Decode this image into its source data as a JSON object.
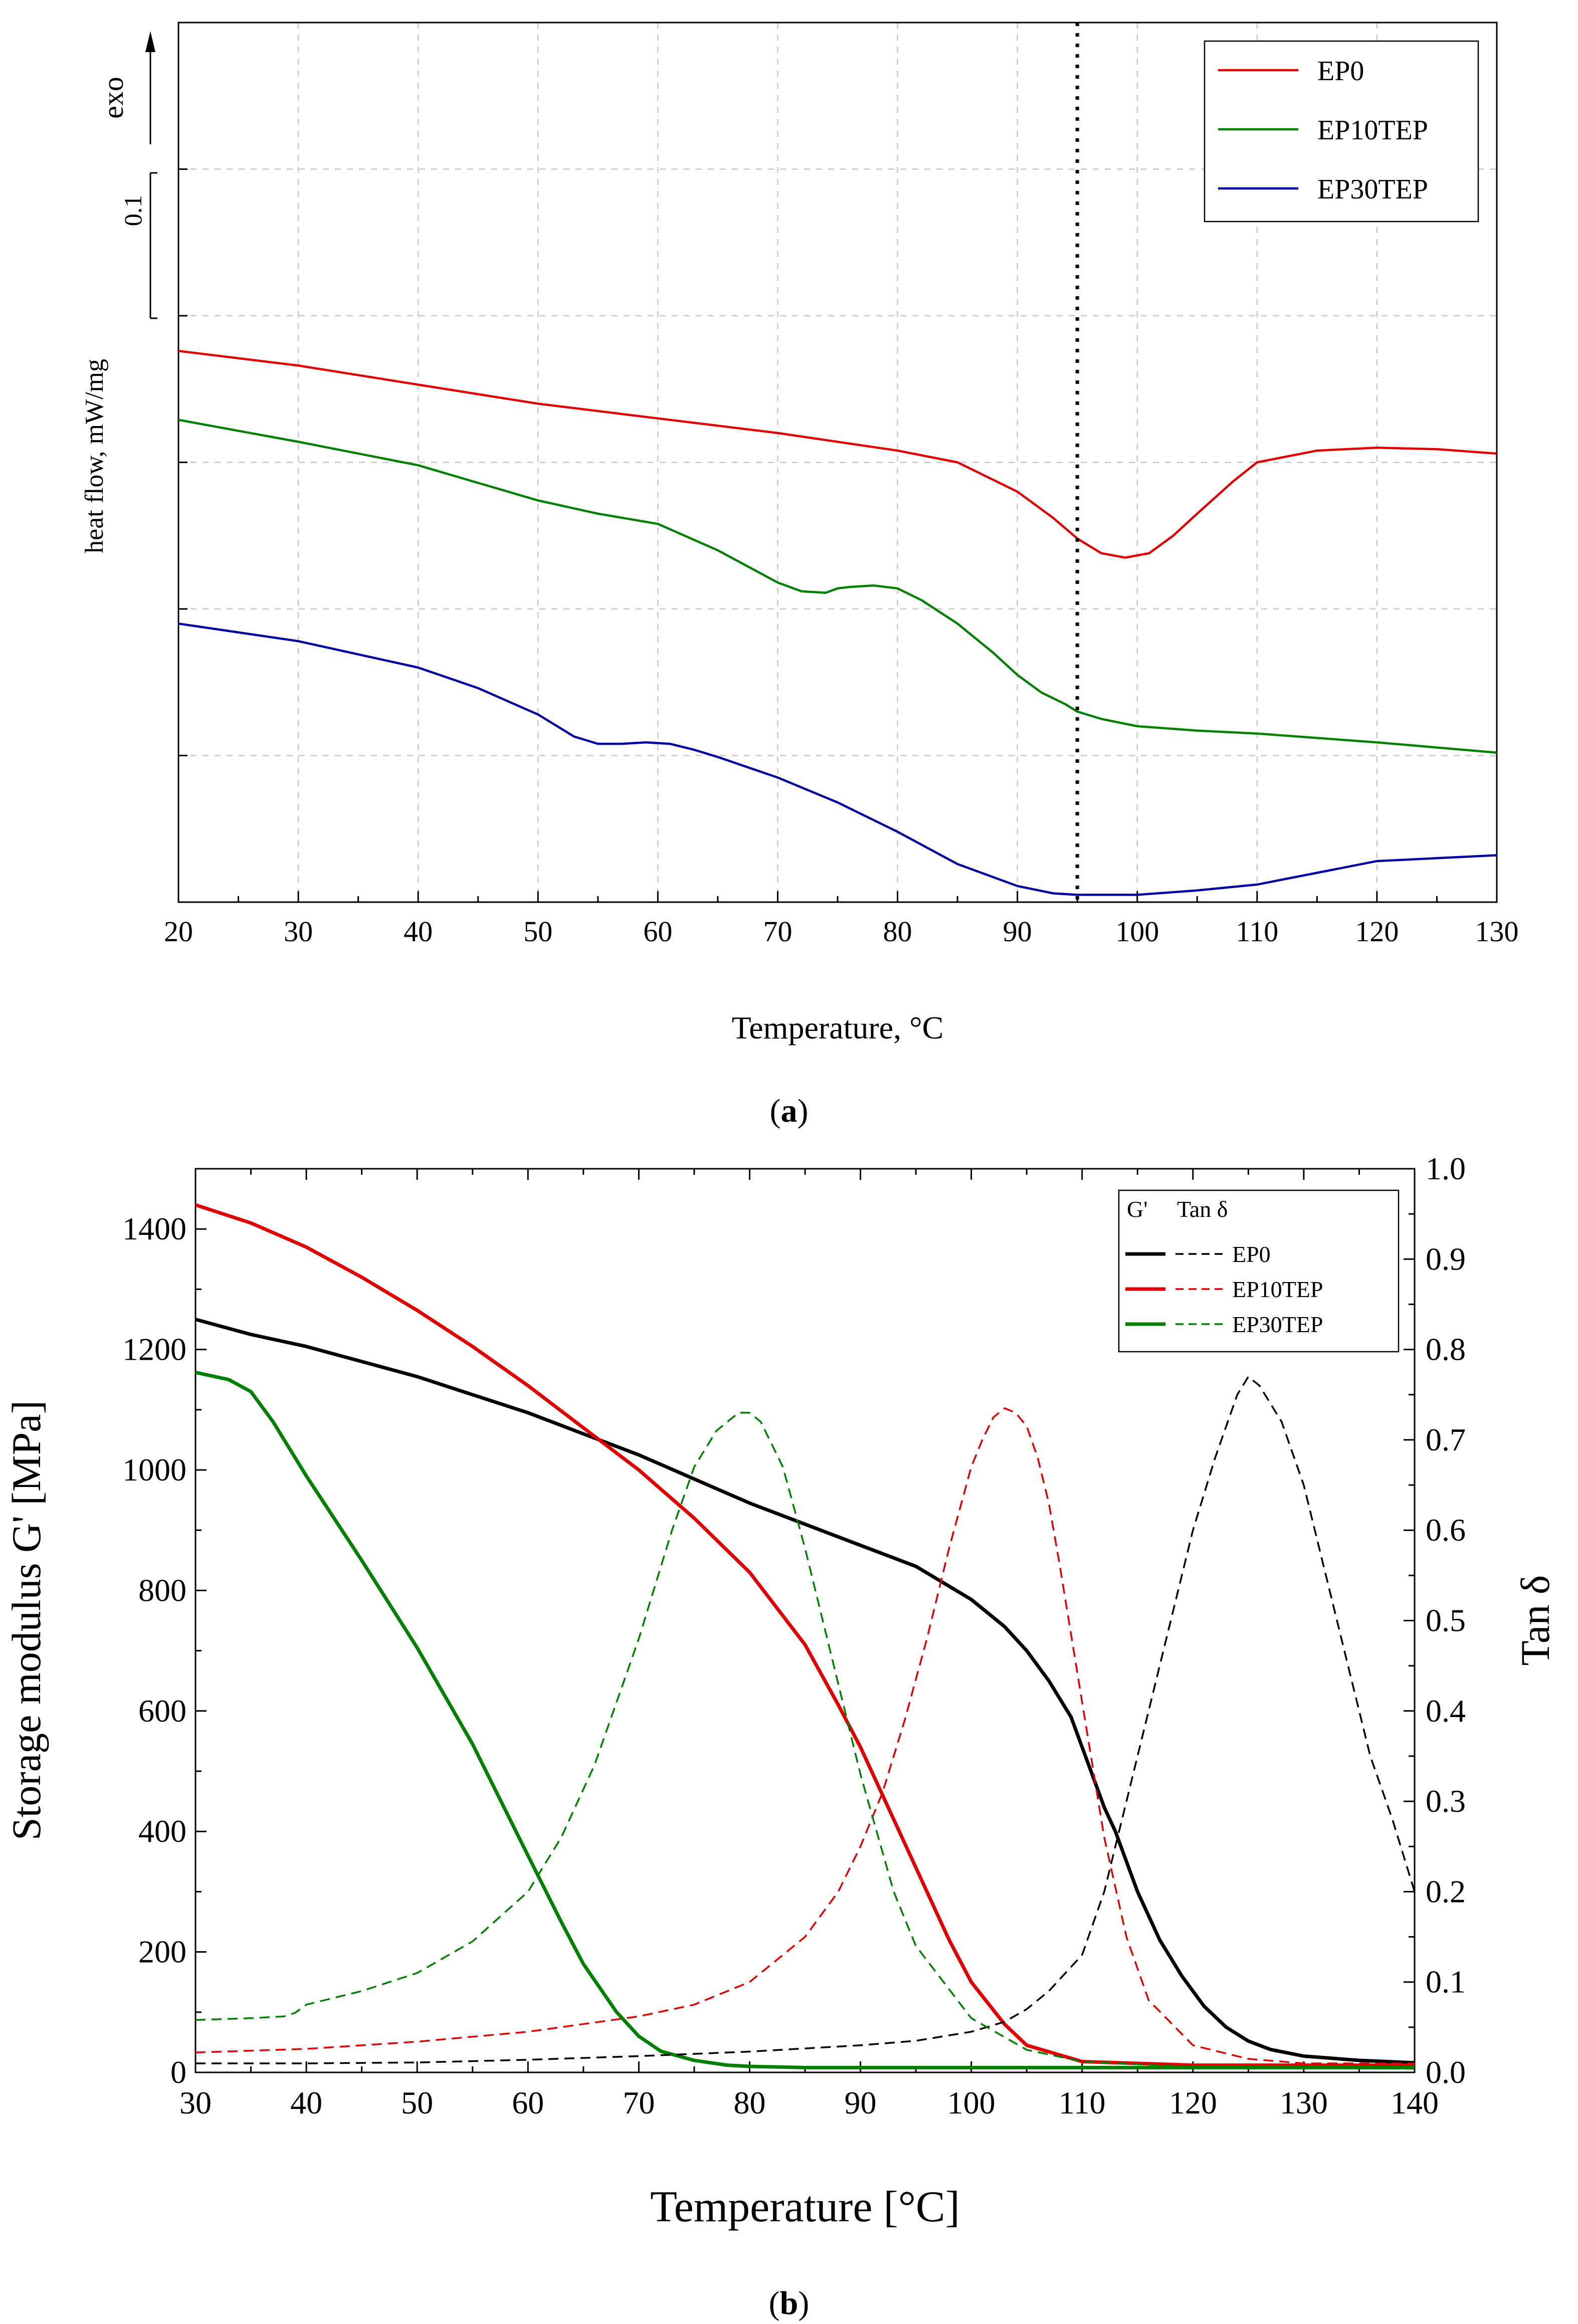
{
  "figure": {
    "panel_a_label": "a",
    "panel_b_label": "b"
  },
  "chart_data": [
    {
      "type": "line",
      "panel": "a",
      "title": "",
      "xlabel": "Temperature, °C",
      "ylabel": "heat flow, mW/mg",
      "xlim": [
        20,
        130
      ],
      "xticks": [
        20,
        30,
        40,
        50,
        60,
        70,
        80,
        90,
        100,
        110,
        120,
        130
      ],
      "ylim": [
        0.0,
        0.6
      ],
      "yticks": [
        0.0,
        0.1,
        0.2,
        0.3,
        0.4,
        0.5,
        0.6
      ],
      "y_tick_labels_shown": false,
      "grid": true,
      "scale_bar": {
        "label": "0.1",
        "from": 0.4,
        "to": 0.5
      },
      "exo_indicator": {
        "label": "exo",
        "direction": "up"
      },
      "vertical_marker": {
        "x": 95,
        "style": "dotted"
      },
      "legend": {
        "position": "top-right"
      },
      "series": [
        {
          "name": "EP0",
          "color": "#e00000",
          "x": [
            20,
            30,
            40,
            50,
            60,
            70,
            80,
            85,
            90,
            93,
            95,
            97,
            99,
            101,
            103,
            105,
            108,
            110,
            115,
            120,
            125,
            130
          ],
          "y": [
            0.376,
            0.366,
            0.353,
            0.34,
            0.33,
            0.32,
            0.308,
            0.3,
            0.28,
            0.262,
            0.248,
            0.238,
            0.235,
            0.238,
            0.25,
            0.265,
            0.287,
            0.3,
            0.308,
            0.31,
            0.309,
            0.306
          ]
        },
        {
          "name": "EP10TEP",
          "color": "#008000",
          "x": [
            20,
            30,
            40,
            45,
            50,
            55,
            60,
            65,
            70,
            72,
            74,
            75,
            76,
            78,
            80,
            82,
            85,
            88,
            90,
            92,
            94,
            95,
            97,
            100,
            105,
            110,
            120,
            130
          ],
          "y": [
            0.329,
            0.314,
            0.298,
            0.286,
            0.274,
            0.265,
            0.258,
            0.24,
            0.218,
            0.212,
            0.211,
            0.214,
            0.215,
            0.216,
            0.214,
            0.206,
            0.19,
            0.17,
            0.155,
            0.143,
            0.135,
            0.13,
            0.125,
            0.12,
            0.117,
            0.115,
            0.109,
            0.102
          ]
        },
        {
          "name": "EP30TEP",
          "color": "#0000a0",
          "x": [
            20,
            30,
            40,
            45,
            50,
            53,
            55,
            57,
            59,
            61,
            63,
            65,
            70,
            75,
            80,
            85,
            90,
            93,
            95,
            100,
            105,
            110,
            115,
            120,
            125,
            130
          ],
          "y": [
            0.19,
            0.178,
            0.16,
            0.146,
            0.128,
            0.113,
            0.108,
            0.108,
            0.109,
            0.108,
            0.104,
            0.099,
            0.085,
            0.068,
            0.048,
            0.026,
            0.011,
            0.006,
            0.005,
            0.005,
            0.008,
            0.012,
            0.02,
            0.028,
            0.03,
            0.032
          ]
        }
      ]
    },
    {
      "type": "line",
      "panel": "b",
      "title": "",
      "xlabel": "Temperature [°C]",
      "ylabel": "Storage modulus G' [MPa]",
      "y2label": "Tan δ",
      "xlim": [
        30,
        140
      ],
      "xticks": [
        30,
        40,
        50,
        60,
        70,
        80,
        90,
        100,
        110,
        120,
        130,
        140
      ],
      "ylim": [
        0,
        1500
      ],
      "yticks": [
        0,
        200,
        400,
        600,
        800,
        1000,
        1200,
        1400
      ],
      "y2lim": [
        0,
        1.0
      ],
      "y2ticks": [
        "0.0",
        "0.1",
        "0.2",
        "0.3",
        "0.4",
        "0.5",
        "0.6",
        "0.7",
        "0.8",
        "0.9",
        "1.0"
      ],
      "grid": false,
      "legend": {
        "position": "top-right",
        "header_gprime": "G'",
        "header_tand": "Tan δ"
      },
      "series": [
        {
          "name": "EP0",
          "quantity": "G'",
          "axis": "left",
          "style": "solid",
          "color": "#000000",
          "x": [
            30,
            35,
            40,
            45,
            50,
            55,
            60,
            65,
            70,
            75,
            80,
            85,
            90,
            95,
            100,
            103,
            105,
            107,
            109,
            110,
            111,
            112,
            113,
            114,
            115,
            117,
            119,
            121,
            123,
            125,
            127,
            130,
            135,
            140
          ],
          "y": [
            1250,
            1225,
            1205,
            1180,
            1155,
            1125,
            1095,
            1060,
            1025,
            985,
            945,
            910,
            875,
            840,
            785,
            740,
            700,
            650,
            590,
            540,
            490,
            440,
            400,
            350,
            300,
            220,
            160,
            110,
            75,
            52,
            38,
            27,
            20,
            16
          ]
        },
        {
          "name": "EP10TEP",
          "quantity": "G'",
          "axis": "left",
          "style": "solid",
          "color": "#e00000",
          "x": [
            30,
            35,
            40,
            45,
            50,
            55,
            60,
            65,
            70,
            75,
            80,
            85,
            88,
            90,
            92,
            95,
            98,
            100,
            103,
            105,
            110,
            120,
            140
          ],
          "y": [
            1440,
            1410,
            1370,
            1320,
            1265,
            1205,
            1140,
            1070,
            1000,
            920,
            830,
            710,
            610,
            540,
            460,
            340,
            220,
            150,
            80,
            45,
            18,
            12,
            12
          ]
        },
        {
          "name": "EP30TEP",
          "quantity": "G'",
          "axis": "left",
          "style": "solid",
          "color": "#008000",
          "x": [
            30,
            33,
            35,
            37,
            40,
            45,
            50,
            55,
            60,
            63,
            65,
            68,
            70,
            72,
            75,
            78,
            80,
            85,
            90,
            100,
            140
          ],
          "y": [
            1162,
            1150,
            1130,
            1080,
            990,
            850,
            705,
            545,
            360,
            250,
            180,
            100,
            60,
            35,
            20,
            12,
            10,
            8,
            8,
            8,
            8
          ]
        },
        {
          "name": "EP0",
          "quantity": "Tan δ",
          "axis": "right",
          "style": "dashed",
          "color": "#000000",
          "x": [
            30,
            40,
            50,
            60,
            70,
            80,
            90,
            95,
            100,
            103,
            105,
            107,
            110,
            112,
            114,
            116,
            118,
            120,
            122,
            124,
            125,
            126,
            128,
            130,
            132,
            134,
            136,
            138,
            140
          ],
          "y": [
            0.01,
            0.01,
            0.011,
            0.014,
            0.018,
            0.023,
            0.03,
            0.035,
            0.045,
            0.056,
            0.07,
            0.09,
            0.13,
            0.2,
            0.3,
            0.4,
            0.5,
            0.6,
            0.68,
            0.75,
            0.77,
            0.76,
            0.72,
            0.65,
            0.55,
            0.45,
            0.35,
            0.28,
            0.2
          ]
        },
        {
          "name": "EP10TEP",
          "quantity": "Tan δ",
          "axis": "right",
          "style": "dashed",
          "color": "#e00000",
          "x": [
            30,
            40,
            50,
            60,
            70,
            75,
            80,
            85,
            88,
            90,
            92,
            94,
            96,
            98,
            100,
            101,
            102,
            103,
            104,
            105,
            106,
            107,
            108,
            110,
            112,
            114,
            116,
            120,
            125,
            130,
            140
          ],
          "y": [
            0.022,
            0.026,
            0.034,
            0.045,
            0.062,
            0.075,
            0.1,
            0.15,
            0.2,
            0.25,
            0.31,
            0.39,
            0.48,
            0.58,
            0.67,
            0.7,
            0.725,
            0.735,
            0.73,
            0.715,
            0.68,
            0.63,
            0.56,
            0.41,
            0.26,
            0.15,
            0.08,
            0.03,
            0.015,
            0.01,
            0.01
          ]
        },
        {
          "name": "EP30TEP",
          "quantity": "Tan δ",
          "axis": "right",
          "style": "dashed",
          "color": "#008000",
          "x": [
            30,
            35,
            38,
            39,
            40,
            45,
            50,
            55,
            60,
            63,
            66,
            70,
            73,
            75,
            77,
            79,
            80,
            81,
            83,
            85,
            87,
            90,
            93,
            95,
            100,
            105,
            110,
            120,
            140
          ],
          "y": [
            0.058,
            0.06,
            0.062,
            0.066,
            0.075,
            0.09,
            0.11,
            0.145,
            0.2,
            0.26,
            0.34,
            0.48,
            0.6,
            0.67,
            0.71,
            0.73,
            0.73,
            0.72,
            0.67,
            0.58,
            0.48,
            0.33,
            0.2,
            0.14,
            0.06,
            0.025,
            0.012,
            0.006,
            0.004
          ]
        }
      ]
    }
  ]
}
